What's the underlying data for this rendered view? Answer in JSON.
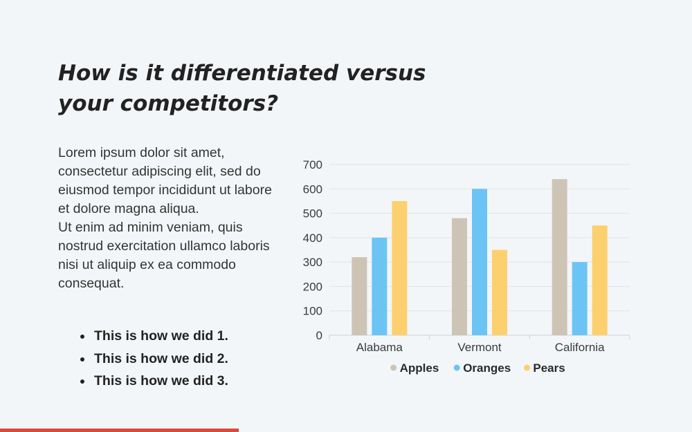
{
  "slide": {
    "title": "How is it differentiated versus your competitors?",
    "paragraphs": [
      "Lorem ipsum dolor sit amet, consectetur adipiscing elit, sed do eiusmod tempor incididunt ut labore et dolore magna aliqua.",
      "Ut enim ad minim veniam, quis nostrud exercitation ullamco laboris nisi ut aliquip ex ea commodo consequat."
    ],
    "bullets": [
      "This is how we did 1.",
      "This is how we did 2.",
      "This is how we did 3."
    ],
    "accent_color": "#d64b3a"
  },
  "chart_data": {
    "type": "bar",
    "categories": [
      "Alabama",
      "Vermont",
      "California"
    ],
    "series": [
      {
        "name": "Apples",
        "values": [
          320,
          480,
          640
        ],
        "color": "#cdc4b6"
      },
      {
        "name": "Oranges",
        "values": [
          400,
          600,
          300
        ],
        "color": "#6cc4f5"
      },
      {
        "name": "Pears",
        "values": [
          550,
          350,
          450
        ],
        "color": "#fcd06f"
      }
    ],
    "yticks": [
      "0",
      "100",
      "200",
      "300",
      "400",
      "500",
      "600",
      "700"
    ],
    "ylim": [
      0,
      700
    ],
    "grid": true,
    "legend": "bottom"
  }
}
